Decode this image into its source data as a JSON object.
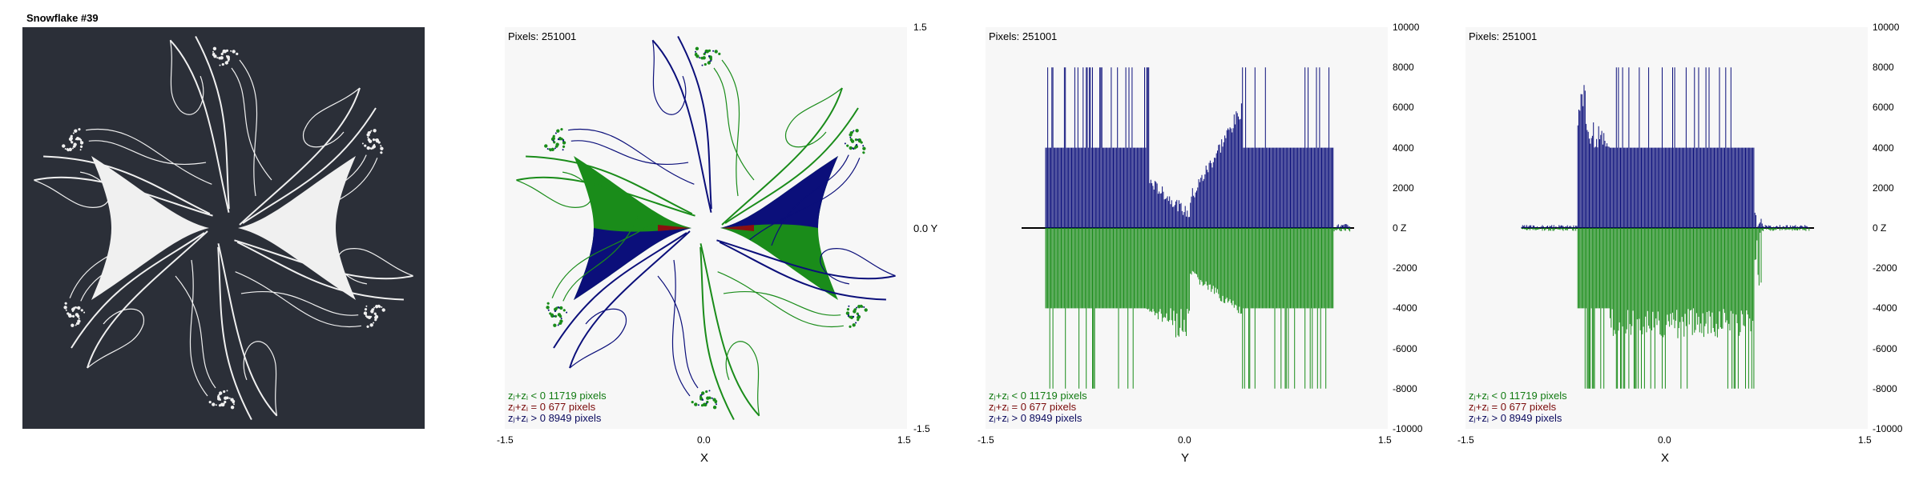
{
  "panel1": {
    "title": "Snowflake #39"
  },
  "colors": {
    "green": "#1a8c1a",
    "blue": "#0b0f7a",
    "red": "#8a1010",
    "white": "#f0f0f0",
    "dark": "#2b2f38"
  },
  "legend": {
    "lt": "zⱼ+zᵢ < 0  11719 pixels",
    "eq": "zⱼ+zᵢ = 0  677 pixels",
    "gt": "zⱼ+zᵢ > 0  8949 pixels"
  },
  "pixels_label": "Pixels: 251001",
  "chart_data": [
    {
      "type": "scatter",
      "title": "Pixels: 251001",
      "xlabel": "X",
      "ylabel": "Y",
      "xlim": [
        -1.5,
        1.5
      ],
      "ylim": [
        -1.5,
        1.5
      ],
      "x_ticks": [
        "-1.5",
        "0.0",
        "1.5"
      ],
      "y_ticks": [
        "1.5",
        "0.0 Y",
        "-1.5"
      ],
      "series": [
        {
          "name": "zj+zi < 0",
          "count": 11719
        },
        {
          "name": "zj+zi = 0",
          "count": 677
        },
        {
          "name": "zj+zi > 0",
          "count": 8949
        }
      ]
    },
    {
      "type": "bar",
      "title": "Pixels: 251001",
      "xlabel": "Y",
      "ylabel": "Z",
      "xlim": [
        -1.5,
        1.5
      ],
      "ylim": [
        -10000,
        10000
      ],
      "x_ticks": [
        "-1.5",
        "0.0",
        "1.5"
      ],
      "y_ticks": [
        "10000",
        "8000",
        "6000",
        "4000",
        "2000",
        "0 Z",
        "-2000",
        "-4000",
        "-6000",
        "-8000",
        "-10000"
      ]
    },
    {
      "type": "bar",
      "title": "Pixels: 251001",
      "xlabel": "X",
      "ylabel": "Z",
      "xlim": [
        -1.5,
        1.5
      ],
      "ylim": [
        -10000,
        10000
      ],
      "x_ticks": [
        "-1.5",
        "0.0",
        "1.5"
      ],
      "y_ticks": [
        "10000",
        "8000",
        "6000",
        "4000",
        "2000",
        "0 Z",
        "-2000",
        "-4000",
        "-6000",
        "-8000",
        "-10000"
      ]
    }
  ]
}
